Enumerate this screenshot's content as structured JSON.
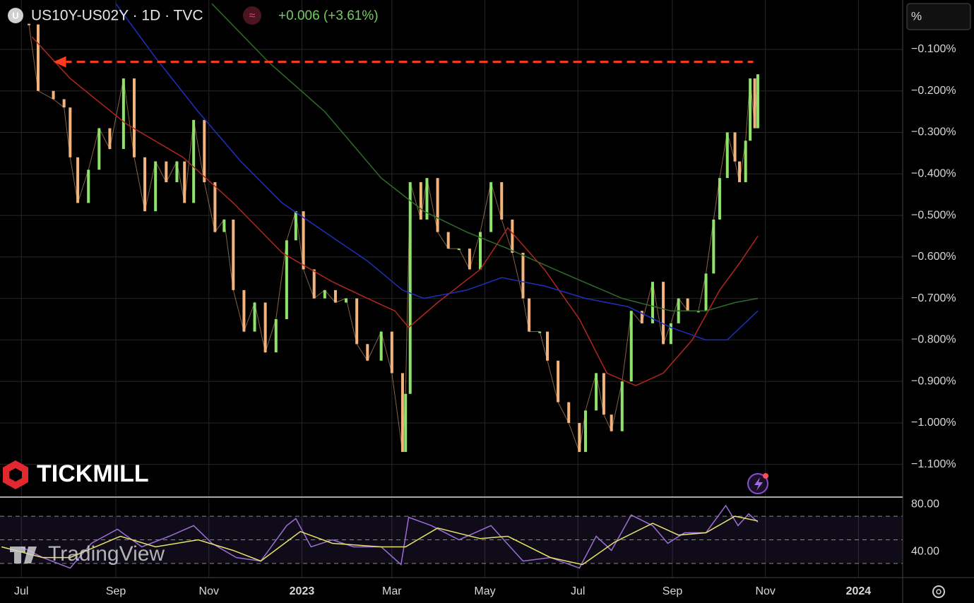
{
  "symbol_icon": "U",
  "unit_label": "%",
  "brand": "TICKMILL",
  "platform": "TradingView",
  "chart_data": [
    {
      "type": "line",
      "title": "US10Y-US02Y · 1D · TVC",
      "subtitle": "+0.006 (+3.61%)",
      "title_icon": "≈",
      "xlim": [
        -14,
        578
      ],
      "ylim": [
        -1.177,
        0.019
      ],
      "grid": true,
      "xticks": [
        {
          "value": 0,
          "label": "Jul"
        },
        {
          "value": 62,
          "label": "Sep"
        },
        {
          "value": 123,
          "label": "Nov"
        },
        {
          "value": 184,
          "label": "2023"
        },
        {
          "value": 243,
          "label": "Mar"
        },
        {
          "value": 304,
          "label": "May"
        },
        {
          "value": 365,
          "label": "Jul"
        },
        {
          "value": 427,
          "label": "Sep"
        },
        {
          "value": 488,
          "label": "Nov"
        },
        {
          "value": 549,
          "label": "2024"
        }
      ],
      "yticks": [
        {
          "value": -0.1,
          "label": "−0.100%"
        },
        {
          "value": -0.2,
          "label": "−0.200%"
        },
        {
          "value": -0.3,
          "label": "−0.300%"
        },
        {
          "value": -0.4,
          "label": "−0.400%"
        },
        {
          "value": -0.5,
          "label": "−0.500%"
        },
        {
          "value": -0.6,
          "label": "−0.600%"
        },
        {
          "value": -0.7,
          "label": "−0.700%"
        },
        {
          "value": -0.8,
          "label": "−0.800%"
        },
        {
          "value": -0.9,
          "label": "−0.900%"
        },
        {
          "value": -1.0,
          "label": "−1.000%"
        },
        {
          "value": -1.1,
          "label": "−1.100%"
        }
      ],
      "resistance": {
        "value": -0.13,
        "x": [
          21,
          480
        ],
        "color": "#ff3b1f"
      },
      "series": [
        {
          "style": "candles",
          "color": "#f3b37c",
          "up_color": "#8fe36b",
          "x": [
            5,
            11,
            21,
            28,
            32,
            37,
            44,
            51,
            58,
            67,
            74,
            81,
            88,
            95,
            102,
            107,
            113,
            120,
            127,
            133,
            139,
            146,
            153,
            160,
            167,
            174,
            180,
            185,
            192,
            199,
            206,
            213,
            220,
            227,
            236,
            243,
            250,
            252,
            255,
            262,
            266,
            273,
            280,
            287,
            294,
            301,
            308,
            315,
            322,
            329,
            333,
            340,
            345,
            352,
            359,
            366,
            370,
            377,
            382,
            387,
            394,
            400,
            407,
            414,
            421,
            426,
            431,
            437,
            444,
            449,
            454,
            458,
            463,
            468,
            471,
            475,
            478,
            481,
            483
          ],
          "values": [
            -0.04,
            -0.2,
            -0.22,
            -0.24,
            -0.36,
            -0.47,
            -0.39,
            -0.29,
            -0.34,
            -0.17,
            -0.36,
            -0.49,
            -0.37,
            -0.42,
            -0.37,
            -0.47,
            -0.27,
            -0.42,
            -0.54,
            -0.51,
            -0.68,
            -0.78,
            -0.71,
            -0.83,
            -0.75,
            -0.56,
            -0.49,
            -0.63,
            -0.7,
            -0.68,
            -0.71,
            -0.7,
            -0.81,
            -0.85,
            -0.78,
            -0.88,
            -1.07,
            -0.93,
            -0.42,
            -0.51,
            -0.41,
            -0.54,
            -0.58,
            -0.58,
            -0.63,
            -0.54,
            -0.42,
            -0.51,
            -0.59,
            -0.7,
            -0.78,
            -0.78,
            -0.85,
            -0.95,
            -1.0,
            -1.07,
            -0.97,
            -0.88,
            -0.98,
            -1.02,
            -0.9,
            -0.73,
            -0.76,
            -0.66,
            -0.81,
            -0.76,
            -0.7,
            -0.73,
            -0.73,
            -0.64,
            -0.51,
            -0.41,
            -0.3,
            -0.37,
            -0.42,
            -0.32,
            -0.17,
            -0.29,
            -0.16
          ]
        },
        {
          "style": "line",
          "color": "#b3261e",
          "x": [
            7,
            32,
            69,
            106,
            139,
            171,
            204,
            227,
            245,
            254,
            273,
            301,
            319,
            343,
            366,
            384,
            403,
            421,
            440,
            458,
            472,
            483
          ],
          "values": [
            -0.07,
            -0.17,
            -0.28,
            -0.36,
            -0.47,
            -0.59,
            -0.66,
            -0.7,
            -0.73,
            -0.77,
            -0.71,
            -0.63,
            -0.53,
            -0.63,
            -0.75,
            -0.88,
            -0.91,
            -0.88,
            -0.8,
            -0.68,
            -0.61,
            -0.55
          ]
        },
        {
          "style": "line",
          "color": "#1f2fc0",
          "x": [
            62,
            88,
            116,
            144,
            171,
            199,
            227,
            250,
            264,
            292,
            315,
            343,
            370,
            398,
            426,
            449,
            463,
            483
          ],
          "values": [
            0.01,
            -0.12,
            -0.25,
            -0.37,
            -0.47,
            -0.54,
            -0.61,
            -0.68,
            -0.7,
            -0.68,
            -0.65,
            -0.67,
            -0.7,
            -0.72,
            -0.77,
            -0.8,
            -0.8,
            -0.73
          ]
        },
        {
          "style": "line",
          "color": "#2f6b2a",
          "x": [
            125,
            162,
            199,
            236,
            264,
            292,
            319,
            356,
            394,
            426,
            449,
            468,
            483
          ],
          "values": [
            0.01,
            -0.13,
            -0.25,
            -0.41,
            -0.49,
            -0.54,
            -0.58,
            -0.64,
            -0.7,
            -0.73,
            -0.73,
            -0.71,
            -0.7
          ]
        }
      ]
    },
    {
      "type": "line",
      "xlim": [
        -14,
        578
      ],
      "ylim": [
        18,
        85
      ],
      "grid": false,
      "yticks": [
        {
          "value": 80,
          "label": "80.00"
        },
        {
          "value": 40,
          "label": "40.00"
        }
      ],
      "hlines": [
        70,
        50,
        30
      ],
      "band": [
        30,
        70
      ],
      "series": [
        {
          "style": "line",
          "color": "#9b6fd6",
          "x": [
            0,
            14,
            32,
            46,
            63,
            79,
            97,
            113,
            125,
            141,
            157,
            174,
            180,
            190,
            204,
            218,
            236,
            249,
            254,
            269,
            287,
            308,
            329,
            347,
            366,
            377,
            387,
            400,
            414,
            424,
            435,
            449,
            462,
            470,
            477,
            483
          ],
          "values": [
            44,
            35,
            26,
            47,
            59,
            44,
            53,
            62,
            47,
            35,
            32,
            62,
            68,
            44,
            50,
            44,
            44,
            29,
            69,
            62,
            50,
            62,
            32,
            35,
            26,
            53,
            41,
            71,
            62,
            47,
            56,
            56,
            79,
            62,
            72,
            65
          ]
        },
        {
          "style": "line",
          "color": "#e8e46a",
          "x": [
            -13,
            14,
            32,
            65,
            88,
            116,
            139,
            157,
            183,
            204,
            236,
            252,
            273,
            301,
            319,
            347,
            368,
            389,
            414,
            431,
            449,
            468,
            483
          ],
          "values": [
            44,
            35,
            35,
            53,
            44,
            50,
            41,
            32,
            57,
            47,
            44,
            44,
            60,
            51,
            53,
            35,
            29,
            48,
            64,
            54,
            56,
            70,
            66
          ]
        }
      ]
    }
  ]
}
